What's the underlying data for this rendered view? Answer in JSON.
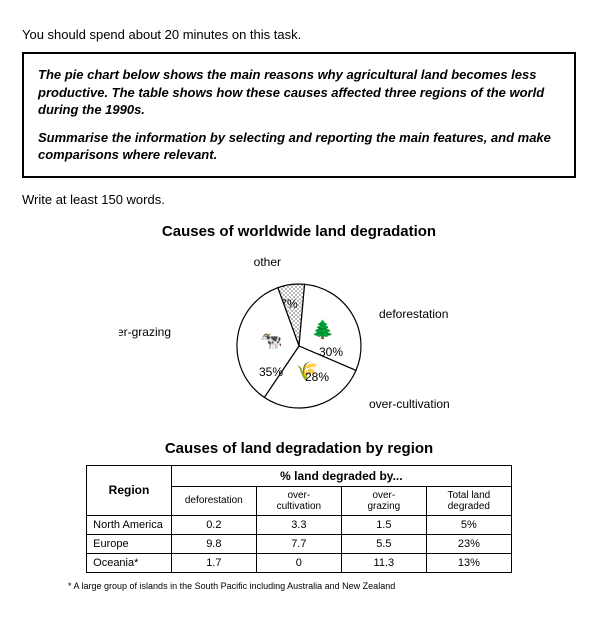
{
  "intro_text": "You should spend about 20 minutes on this task.",
  "task_box": {
    "p1": "The pie chart below shows the main reasons why agricultural land becomes less productive. The table shows how these causes affected three regions of the world during the 1990s.",
    "p2": "Summarise the information by selecting and reporting the main features, and make comparisons where relevant."
  },
  "min_words": "Write at least 150 words.",
  "pie": {
    "title": "Causes of worldwide land degradation",
    "slices": [
      {
        "label": "other",
        "pct": "7%",
        "value": 7
      },
      {
        "label": "deforestation",
        "pct": "30%",
        "value": 30
      },
      {
        "label": "over-cultivation",
        "pct": "28%",
        "value": 28
      },
      {
        "label": "over-grazing",
        "pct": "35%",
        "value": 35
      }
    ],
    "colors": {
      "outline": "#000000",
      "fill": "#ffffff",
      "other_pattern": "#9b9b9b"
    },
    "radius": 62
  },
  "table": {
    "title": "Causes of land degradation by region",
    "region_header": "Region",
    "span_header": "% land degraded by...",
    "sub_headers": [
      "deforestation",
      "over-cultivation",
      "over-grazing",
      "Total land degraded"
    ],
    "rows": [
      {
        "region": "North America",
        "cells": [
          "0.2",
          "3.3",
          "1.5",
          "5%"
        ]
      },
      {
        "region": "Europe",
        "cells": [
          "9.8",
          "7.7",
          "5.5",
          "23%"
        ]
      },
      {
        "region": "Oceania*",
        "cells": [
          "1.7",
          "0",
          "11.3",
          "13%"
        ]
      }
    ]
  },
  "footnote": "* A large group of islands in the South Pacific including Australia and New Zealand"
}
